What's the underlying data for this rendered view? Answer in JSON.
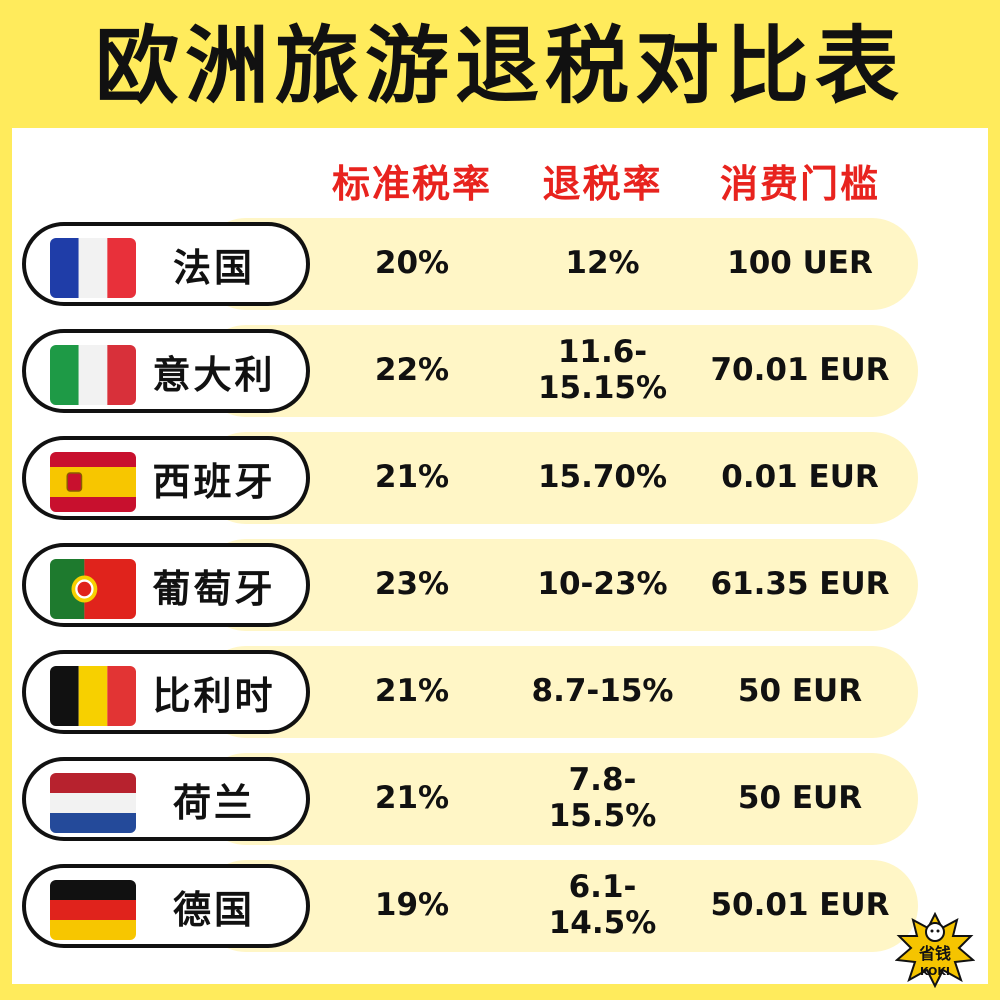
{
  "title": "欧洲旅游退税对比表",
  "headers": {
    "standard_rate": "标准税率",
    "refund_rate": "退税率",
    "threshold": "消费门槛"
  },
  "rows": [
    {
      "country": "法国",
      "flag": "france-flag-icon",
      "standard_rate": "20%",
      "refund_rate": "12%",
      "threshold": "100 UER"
    },
    {
      "country": "意大利",
      "flag": "italy-flag-icon",
      "standard_rate": "22%",
      "refund_rate": "11.6-\n15.15%",
      "threshold": "70.01 EUR"
    },
    {
      "country": "西班牙",
      "flag": "spain-flag-icon",
      "standard_rate": "21%",
      "refund_rate": "15.70%",
      "threshold": "0.01 EUR"
    },
    {
      "country": "葡萄牙",
      "flag": "portugal-flag-icon",
      "standard_rate": "23%",
      "refund_rate": "10-23%",
      "threshold": "61.35 EUR"
    },
    {
      "country": "比利时",
      "flag": "belgium-flag-icon",
      "standard_rate": "21%",
      "refund_rate": "8.7-15%",
      "threshold": "50 EUR"
    },
    {
      "country": "荷兰",
      "flag": "netherlands-flag-icon",
      "standard_rate": "21%",
      "refund_rate": "7.8-\n15.5%",
      "threshold": "50 EUR"
    },
    {
      "country": "德国",
      "flag": "germany-flag-icon",
      "standard_rate": "19%",
      "refund_rate": "6.1-\n14.5%",
      "threshold": "50.01 EUR"
    }
  ],
  "badge": {
    "icon": "mascot-logo-icon",
    "text": "省钱 KOKI"
  },
  "colors": {
    "background": "#FFEB5C",
    "header_text": "#E8231E",
    "row_band": "#FFF6C6"
  }
}
